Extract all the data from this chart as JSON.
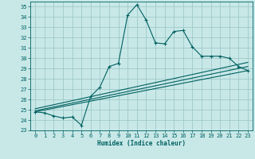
{
  "xlabel": "Humidex (Indice chaleur)",
  "bg_color": "#c8e8e8",
  "grid_color": "#a0c8c8",
  "line_color": "#006060",
  "xlim": [
    -0.5,
    23.5
  ],
  "ylim": [
    23,
    35.5
  ],
  "yticks": [
    23,
    24,
    25,
    26,
    27,
    28,
    29,
    30,
    31,
    32,
    33,
    34,
    35
  ],
  "xticks": [
    0,
    1,
    2,
    3,
    4,
    5,
    6,
    7,
    8,
    9,
    10,
    11,
    12,
    13,
    14,
    15,
    16,
    17,
    18,
    19,
    20,
    21,
    22,
    23
  ],
  "line1_x": [
    0,
    1,
    2,
    3,
    4,
    5,
    6,
    7,
    8,
    9,
    10,
    11,
    12,
    13,
    14,
    15,
    16,
    17,
    18,
    19,
    20,
    21,
    22,
    23
  ],
  "line1_y": [
    24.8,
    24.7,
    24.4,
    24.2,
    24.3,
    23.5,
    26.3,
    27.2,
    29.2,
    29.5,
    34.2,
    35.2,
    33.7,
    31.5,
    31.4,
    32.6,
    32.7,
    31.1,
    30.2,
    30.2,
    30.2,
    30.0,
    29.2,
    28.8
  ],
  "line2_x": [
    0,
    23
  ],
  "line2_y": [
    24.8,
    28.8
  ],
  "line3_x": [
    0,
    23
  ],
  "line3_y": [
    24.9,
    29.2
  ],
  "line4_x": [
    0,
    23
  ],
  "line4_y": [
    25.1,
    29.6
  ]
}
